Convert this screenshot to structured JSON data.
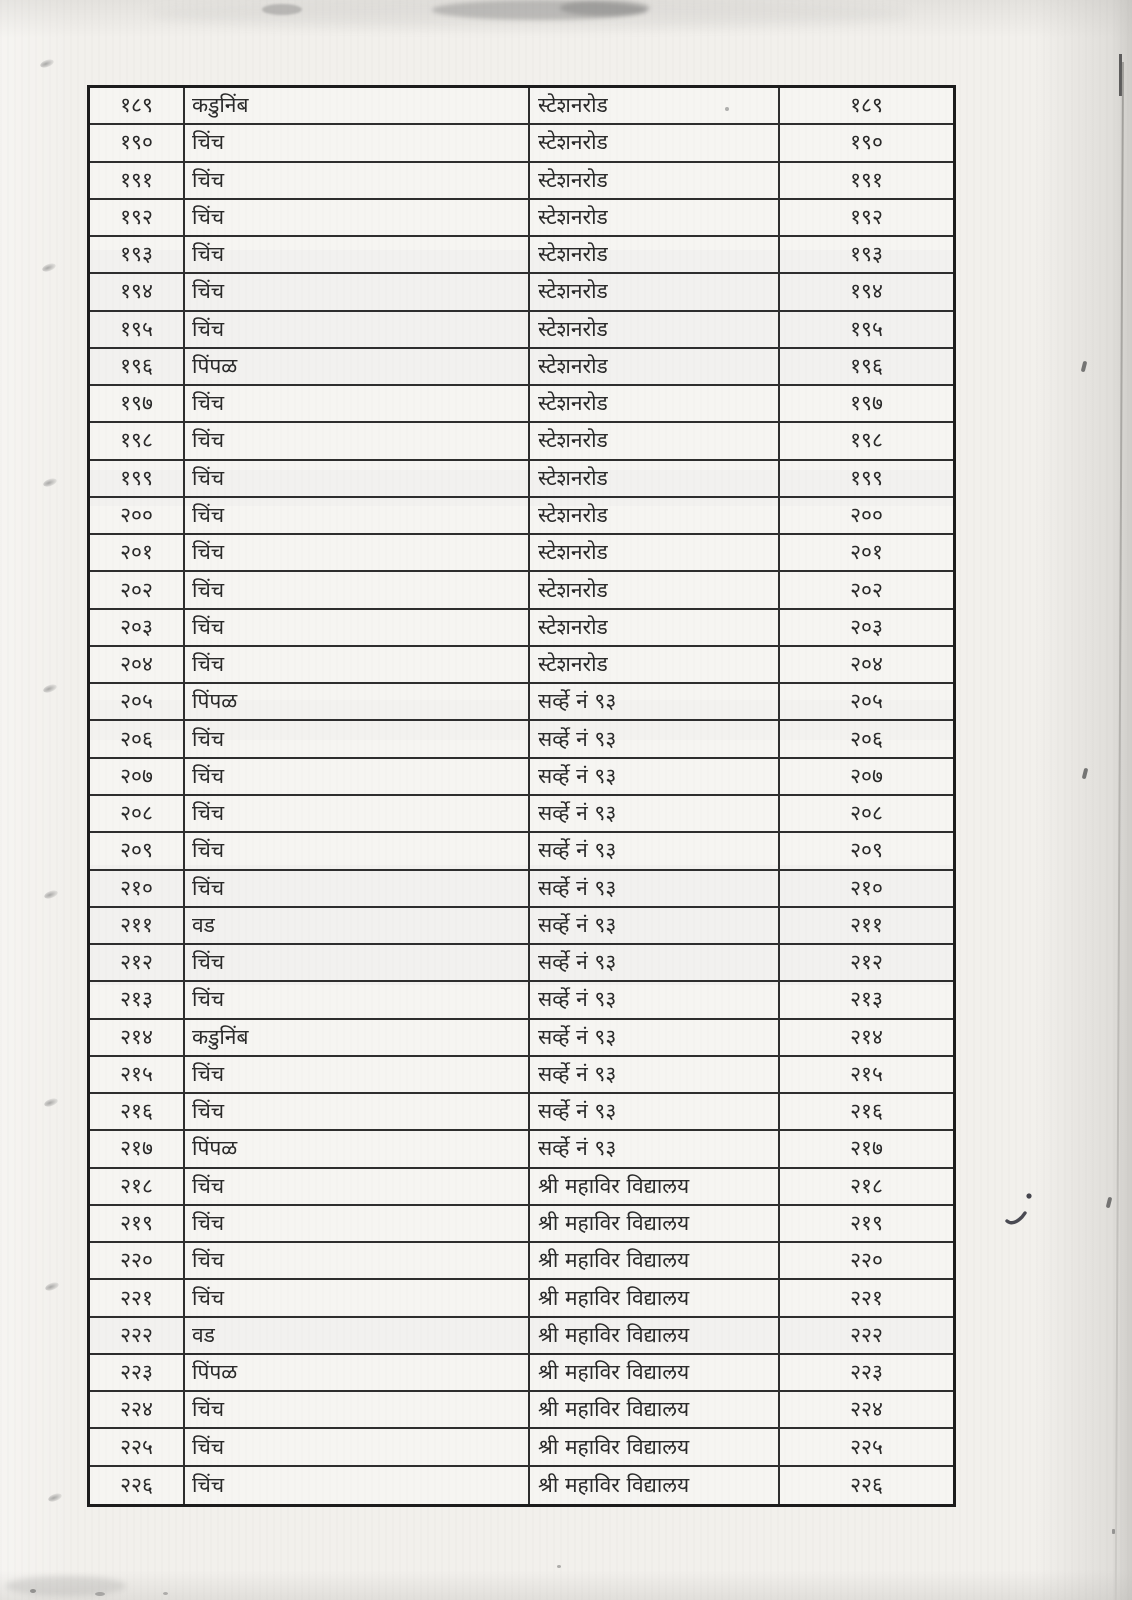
{
  "colors": {
    "paper": "#f2f0ec",
    "ink": "#2a2a2a",
    "line": "#2e2e2e",
    "line-dark": "#1c1c1c"
  },
  "table": {
    "rows": [
      {
        "sr_no": "१८९",
        "tree_name": "कडुनिंब",
        "location": "स्टेशनरोड",
        "tree_no": "१८९"
      },
      {
        "sr_no": "१९०",
        "tree_name": "चिंच",
        "location": "स्टेशनरोड",
        "tree_no": "१९०"
      },
      {
        "sr_no": "१९१",
        "tree_name": "चिंच",
        "location": "स्टेशनरोड",
        "tree_no": "१९१"
      },
      {
        "sr_no": "१९२",
        "tree_name": "चिंच",
        "location": "स्टेशनरोड",
        "tree_no": "१९२"
      },
      {
        "sr_no": "१९३",
        "tree_name": "चिंच",
        "location": "स्टेशनरोड",
        "tree_no": "१९३"
      },
      {
        "sr_no": "१९४",
        "tree_name": "चिंच",
        "location": "स्टेशनरोड",
        "tree_no": "१९४"
      },
      {
        "sr_no": "१९५",
        "tree_name": "चिंच",
        "location": "स्टेशनरोड",
        "tree_no": "१९५"
      },
      {
        "sr_no": "१९६",
        "tree_name": "पिंपळ",
        "location": "स्टेशनरोड",
        "tree_no": "१९६"
      },
      {
        "sr_no": "१९७",
        "tree_name": "चिंच",
        "location": "स्टेशनरोड",
        "tree_no": "१९७"
      },
      {
        "sr_no": "१९८",
        "tree_name": "चिंच",
        "location": "स्टेशनरोड",
        "tree_no": "१९८"
      },
      {
        "sr_no": "१९९",
        "tree_name": "चिंच",
        "location": "स्टेशनरोड",
        "tree_no": "१९९"
      },
      {
        "sr_no": "२००",
        "tree_name": "चिंच",
        "location": "स्टेशनरोड",
        "tree_no": "२००"
      },
      {
        "sr_no": "२०१",
        "tree_name": "चिंच",
        "location": "स्टेशनरोड",
        "tree_no": "२०१"
      },
      {
        "sr_no": "२०२",
        "tree_name": "चिंच",
        "location": "स्टेशनरोड",
        "tree_no": "२०२"
      },
      {
        "sr_no": "२०३",
        "tree_name": "चिंच",
        "location": "स्टेशनरोड",
        "tree_no": "२०३"
      },
      {
        "sr_no": "२०४",
        "tree_name": "चिंच",
        "location": "स्टेशनरोड",
        "tree_no": "२०४"
      },
      {
        "sr_no": "२०५",
        "tree_name": "पिंपळ",
        "location": "सर्व्हे नं ९३",
        "tree_no": "२०५"
      },
      {
        "sr_no": "२०६",
        "tree_name": "चिंच",
        "location": "सर्व्हे नं ९३",
        "tree_no": "२०६"
      },
      {
        "sr_no": "२०७",
        "tree_name": "चिंच",
        "location": "सर्व्हे नं ९३",
        "tree_no": "२०७"
      },
      {
        "sr_no": "२०८",
        "tree_name": "चिंच",
        "location": "सर्व्हे नं ९३",
        "tree_no": "२०८"
      },
      {
        "sr_no": "२०९",
        "tree_name": "चिंच",
        "location": "सर्व्हे नं ९३",
        "tree_no": "२०९"
      },
      {
        "sr_no": "२१०",
        "tree_name": "चिंच",
        "location": "सर्व्हे नं ९३",
        "tree_no": "२१०"
      },
      {
        "sr_no": "२११",
        "tree_name": "वड",
        "location": "सर्व्हे नं ९३",
        "tree_no": "२११"
      },
      {
        "sr_no": "२१२",
        "tree_name": "चिंच",
        "location": "सर्व्हे नं ९३",
        "tree_no": "२१२"
      },
      {
        "sr_no": "२१३",
        "tree_name": "चिंच",
        "location": "सर्व्हे नं ९३",
        "tree_no": "२१३"
      },
      {
        "sr_no": "२१४",
        "tree_name": "कडुनिंब",
        "location": "सर्व्हे नं ९३",
        "tree_no": "२१४"
      },
      {
        "sr_no": "२१५",
        "tree_name": "चिंच",
        "location": "सर्व्हे नं ९३",
        "tree_no": "२१५"
      },
      {
        "sr_no": "२१६",
        "tree_name": "चिंच",
        "location": "सर्व्हे नं ९३",
        "tree_no": "२१६"
      },
      {
        "sr_no": "२१७",
        "tree_name": "पिंपळ",
        "location": "सर्व्हे नं ९३",
        "tree_no": "२१७"
      },
      {
        "sr_no": "२१८",
        "tree_name": "चिंच",
        "location": "श्री महाविर विद्यालय",
        "tree_no": "२१८"
      },
      {
        "sr_no": "२१९",
        "tree_name": "चिंच",
        "location": "श्री महाविर विद्यालय",
        "tree_no": "२१९"
      },
      {
        "sr_no": "२२०",
        "tree_name": "चिंच",
        "location": "श्री महाविर विद्यालय",
        "tree_no": "२२०"
      },
      {
        "sr_no": "२२१",
        "tree_name": "चिंच",
        "location": "श्री महाविर विद्यालय",
        "tree_no": "२२१"
      },
      {
        "sr_no": "२२२",
        "tree_name": "वड",
        "location": "श्री महाविर विद्यालय",
        "tree_no": "२२२"
      },
      {
        "sr_no": "२२३",
        "tree_name": "पिंपळ",
        "location": "श्री महाविर विद्यालय",
        "tree_no": "२२३"
      },
      {
        "sr_no": "२२४",
        "tree_name": "चिंच",
        "location": "श्री महाविर विद्यालय",
        "tree_no": "२२४"
      },
      {
        "sr_no": "२२५",
        "tree_name": "चिंच",
        "location": "श्री महाविर विद्यालय",
        "tree_no": "२२५"
      },
      {
        "sr_no": "२२६",
        "tree_name": "चिंच",
        "location": "श्री महाविर विद्यालय",
        "tree_no": "२२६"
      }
    ]
  }
}
